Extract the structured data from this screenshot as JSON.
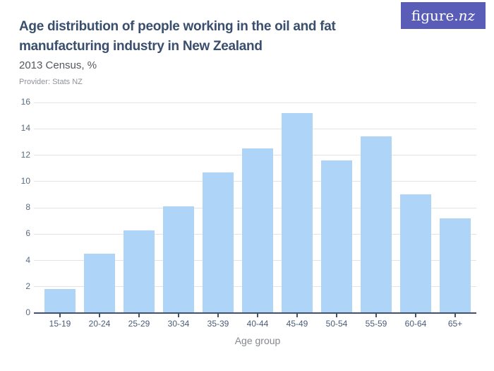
{
  "header": {
    "title": "Age distribution of people working in the oil and fat manufacturing industry in New Zealand",
    "subtitle": "2013 Census, %",
    "provider": "Provider: Stats NZ",
    "logo": {
      "text_regular": "figure.",
      "text_italic": "nz",
      "background": "#5a5db8"
    }
  },
  "chart_data": {
    "type": "bar",
    "title": "Age distribution of people working in the oil and fat manufacturing industry in New Zealand",
    "subtitle": "2013 Census, %",
    "categories": [
      "15-19",
      "20-24",
      "25-29",
      "30-34",
      "35-39",
      "40-44",
      "45-49",
      "50-54",
      "55-59",
      "60-64",
      "65+"
    ],
    "values": [
      1.8,
      4.5,
      6.3,
      8.1,
      10.7,
      12.5,
      15.2,
      11.6,
      13.4,
      9.0,
      7.2
    ],
    "xlabel": "Age group",
    "ylabel": "",
    "ylim": [
      0,
      16
    ],
    "ytick_step": 2,
    "yticks": [
      0,
      2,
      4,
      6,
      8,
      10,
      12,
      14,
      16
    ],
    "grid": true,
    "legend": "none",
    "bar_color": "#aed5f7",
    "gridline_color": "#e3e3e3",
    "axis_color": "#42526b"
  }
}
